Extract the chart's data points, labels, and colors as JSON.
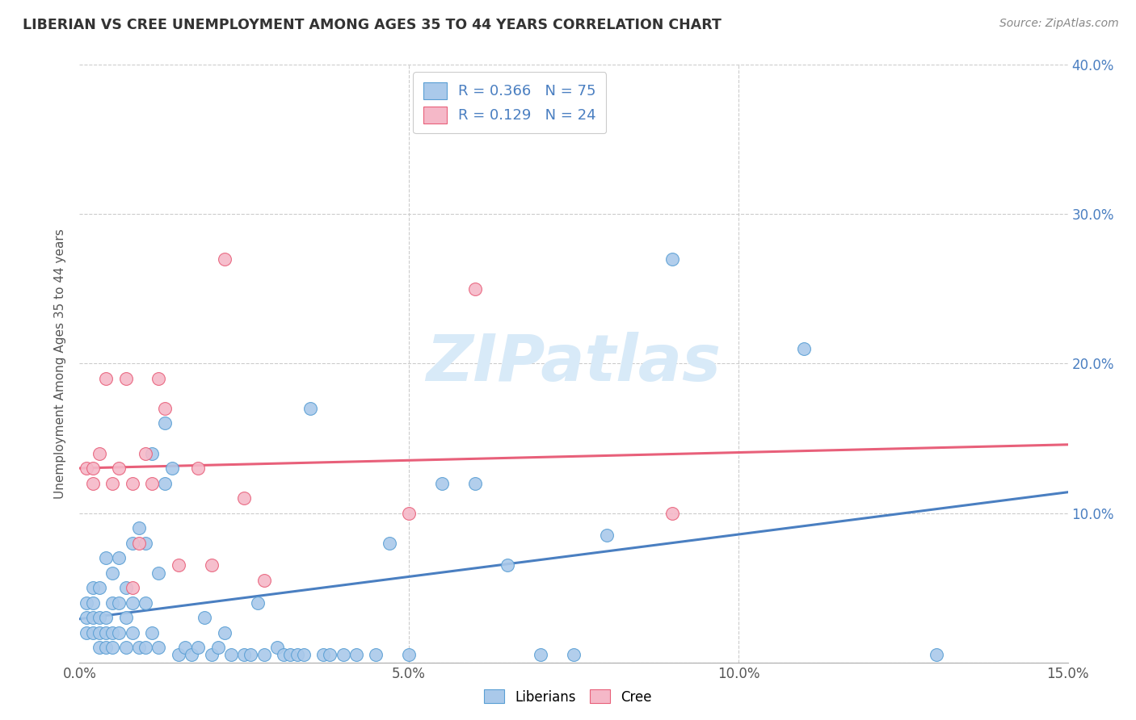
{
  "title": "LIBERIAN VS CREE UNEMPLOYMENT AMONG AGES 35 TO 44 YEARS CORRELATION CHART",
  "source": "Source: ZipAtlas.com",
  "ylabel": "Unemployment Among Ages 35 to 44 years",
  "xlim": [
    0,
    0.15
  ],
  "ylim": [
    0,
    0.4
  ],
  "xticks": [
    0.0,
    0.05,
    0.1,
    0.15
  ],
  "xtick_labels": [
    "0.0%",
    "5.0%",
    "10.0%",
    "15.0%"
  ],
  "yticks": [
    0.0,
    0.1,
    0.2,
    0.3,
    0.4
  ],
  "ytick_labels_right": [
    "",
    "10.0%",
    "20.0%",
    "30.0%",
    "40.0%"
  ],
  "liberian_R": "0.366",
  "liberian_N": "75",
  "cree_R": "0.129",
  "cree_N": "24",
  "liberian_color": "#aac9ea",
  "liberian_edge_color": "#5a9fd4",
  "cree_color": "#f5b8c8",
  "cree_edge_color": "#e8607a",
  "liberian_line_color": "#4a7fc1",
  "cree_line_color": "#e8607a",
  "watermark_color": "#d8eaf8",
  "background_color": "#ffffff",
  "liberian_x": [
    0.001,
    0.001,
    0.001,
    0.002,
    0.002,
    0.002,
    0.002,
    0.003,
    0.003,
    0.003,
    0.003,
    0.004,
    0.004,
    0.004,
    0.004,
    0.005,
    0.005,
    0.005,
    0.005,
    0.006,
    0.006,
    0.006,
    0.007,
    0.007,
    0.007,
    0.008,
    0.008,
    0.008,
    0.009,
    0.009,
    0.01,
    0.01,
    0.01,
    0.011,
    0.011,
    0.012,
    0.012,
    0.013,
    0.013,
    0.014,
    0.015,
    0.016,
    0.017,
    0.018,
    0.019,
    0.02,
    0.021,
    0.022,
    0.023,
    0.025,
    0.026,
    0.027,
    0.028,
    0.03,
    0.031,
    0.032,
    0.033,
    0.034,
    0.035,
    0.037,
    0.038,
    0.04,
    0.042,
    0.045,
    0.047,
    0.05,
    0.055,
    0.06,
    0.065,
    0.07,
    0.075,
    0.08,
    0.09,
    0.11,
    0.13
  ],
  "liberian_y": [
    0.02,
    0.03,
    0.04,
    0.02,
    0.03,
    0.04,
    0.05,
    0.01,
    0.02,
    0.03,
    0.05,
    0.01,
    0.02,
    0.03,
    0.07,
    0.01,
    0.02,
    0.04,
    0.06,
    0.02,
    0.04,
    0.07,
    0.01,
    0.03,
    0.05,
    0.02,
    0.04,
    0.08,
    0.01,
    0.09,
    0.01,
    0.04,
    0.08,
    0.02,
    0.14,
    0.01,
    0.06,
    0.12,
    0.16,
    0.13,
    0.005,
    0.01,
    0.005,
    0.01,
    0.03,
    0.005,
    0.01,
    0.02,
    0.005,
    0.005,
    0.005,
    0.04,
    0.005,
    0.01,
    0.005,
    0.005,
    0.005,
    0.005,
    0.17,
    0.005,
    0.005,
    0.005,
    0.005,
    0.005,
    0.08,
    0.005,
    0.12,
    0.12,
    0.065,
    0.005,
    0.005,
    0.085,
    0.27,
    0.21,
    0.005
  ],
  "cree_x": [
    0.001,
    0.002,
    0.002,
    0.003,
    0.004,
    0.005,
    0.006,
    0.007,
    0.008,
    0.008,
    0.009,
    0.01,
    0.011,
    0.012,
    0.013,
    0.015,
    0.018,
    0.02,
    0.022,
    0.025,
    0.028,
    0.05,
    0.06,
    0.09
  ],
  "cree_y": [
    0.13,
    0.13,
    0.12,
    0.14,
    0.19,
    0.12,
    0.13,
    0.19,
    0.12,
    0.05,
    0.08,
    0.14,
    0.12,
    0.19,
    0.17,
    0.065,
    0.13,
    0.065,
    0.27,
    0.11,
    0.055,
    0.1,
    0.25,
    0.1
  ]
}
